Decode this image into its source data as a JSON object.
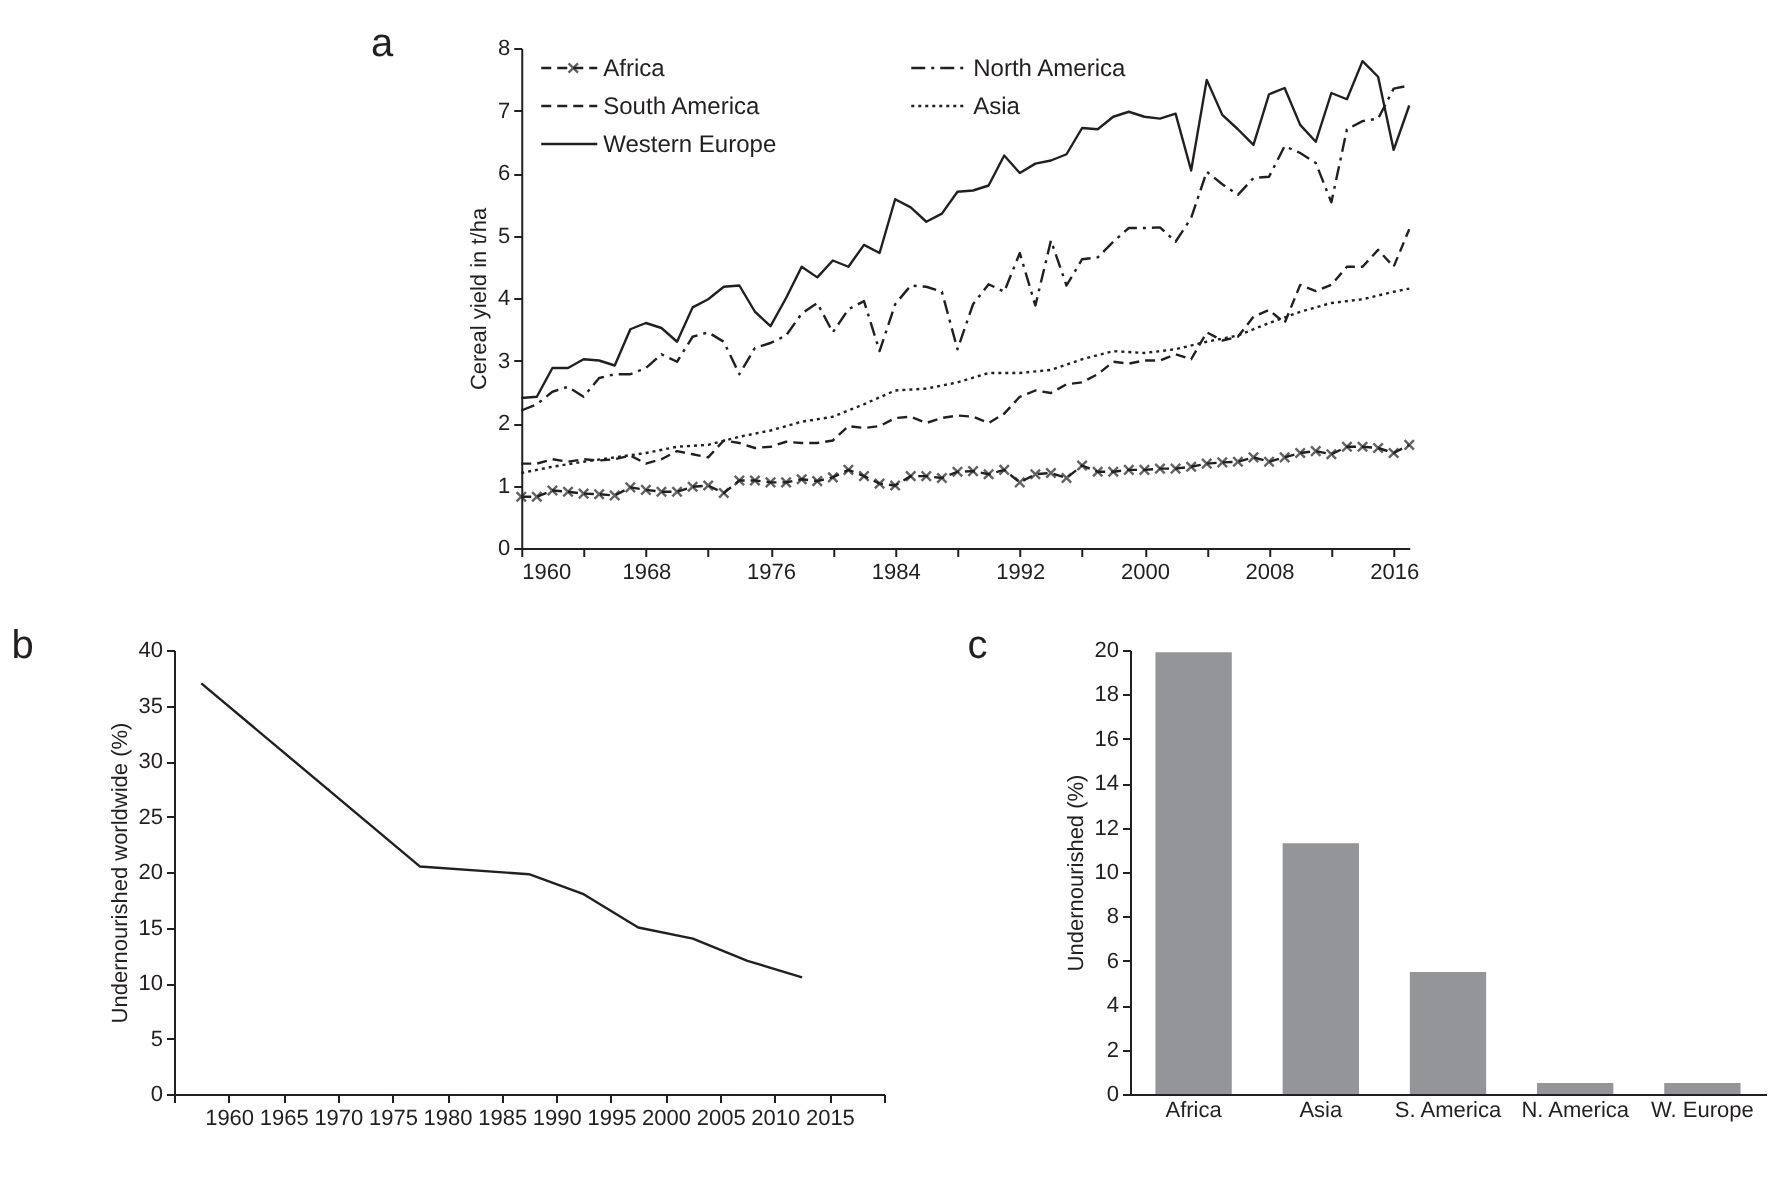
{
  "chart_data": [
    {
      "type": "line",
      "title": "a",
      "ylabel": "Cereal yield in t/ha",
      "legend": "top left",
      "x": [
        1960,
        1961,
        1962,
        1963,
        1964,
        1965,
        1966,
        1967,
        1968,
        1969,
        1970,
        1971,
        1972,
        1973,
        1974,
        1975,
        1976,
        1977,
        1978,
        1979,
        1980,
        1981,
        1982,
        1983,
        1984,
        1985,
        1986,
        1987,
        1988,
        1989,
        1990,
        1991,
        1992,
        1993,
        1994,
        1995,
        1996,
        1997,
        1998,
        1999,
        2000,
        2001,
        2002,
        2003,
        2004,
        2005,
        2006,
        2007,
        2008,
        2009,
        2010,
        2011,
        2012,
        2013,
        2014,
        2015,
        2016,
        2017
      ],
      "series": [
        {
          "name": "Africa",
          "color": "#231f20",
          "line_style": "dashed",
          "marker": "cross",
          "values": [
            0.82,
            0.82,
            0.92,
            0.9,
            0.87,
            0.86,
            0.84,
            0.97,
            0.93,
            0.9,
            0.9,
            0.98,
            1.0,
            0.88,
            1.08,
            1.08,
            1.05,
            1.05,
            1.1,
            1.07,
            1.13,
            1.25,
            1.15,
            1.03,
            1.0,
            1.15,
            1.15,
            1.12,
            1.22,
            1.23,
            1.18,
            1.25,
            1.05,
            1.18,
            1.2,
            1.12,
            1.32,
            1.22,
            1.22,
            1.25,
            1.25,
            1.27,
            1.27,
            1.3,
            1.35,
            1.37,
            1.38,
            1.45,
            1.38,
            1.45,
            1.52,
            1.55,
            1.5,
            1.62,
            1.62,
            1.6,
            1.52,
            1.65
          ]
        },
        {
          "name": "North America",
          "color": "#231f20",
          "line_style": "dashdot",
          "values": [
            2.2,
            2.3,
            2.5,
            2.58,
            2.42,
            2.72,
            2.78,
            2.78,
            2.88,
            3.1,
            2.98,
            3.38,
            3.45,
            3.3,
            2.78,
            3.2,
            3.28,
            3.4,
            3.75,
            3.92,
            3.45,
            3.82,
            3.95,
            3.15,
            3.9,
            4.2,
            4.18,
            4.1,
            3.18,
            3.9,
            4.22,
            4.1,
            4.72,
            3.88,
            4.92,
            4.2,
            4.62,
            4.65,
            4.9,
            5.12,
            5.12,
            5.13,
            4.9,
            5.28,
            6.02,
            5.82,
            5.65,
            5.92,
            5.94,
            6.43,
            6.32,
            6.16,
            5.53,
            6.7,
            6.83,
            6.87,
            7.35,
            7.4
          ]
        },
        {
          "name": "South America",
          "color": "#231f20",
          "line_style": "dashed",
          "values": [
            1.35,
            1.35,
            1.42,
            1.38,
            1.42,
            1.4,
            1.42,
            1.48,
            1.35,
            1.42,
            1.55,
            1.5,
            1.45,
            1.72,
            1.68,
            1.6,
            1.62,
            1.7,
            1.68,
            1.68,
            1.72,
            1.95,
            1.92,
            1.95,
            2.08,
            2.1,
            2.0,
            2.08,
            2.12,
            2.1,
            2.0,
            2.15,
            2.42,
            2.52,
            2.48,
            2.62,
            2.65,
            2.78,
            2.98,
            2.95,
            3.0,
            3.0,
            3.1,
            3.02,
            3.45,
            3.32,
            3.38,
            3.7,
            3.81,
            3.6,
            4.21,
            4.11,
            4.21,
            4.5,
            4.5,
            4.77,
            4.5,
            5.1
          ]
        },
        {
          "name": "Asia",
          "color": "#231f20",
          "line_style": "dotted",
          "x": [
            1960,
            1962,
            1964,
            1966,
            1968,
            1970,
            1972,
            1974,
            1976,
            1978,
            1980,
            1982,
            1984,
            1986,
            1988,
            1990,
            1992,
            1994,
            1996,
            1998,
            2000,
            2002,
            2004,
            2006,
            2008,
            2010,
            2012,
            2014,
            2016,
            2017
          ],
          "values": [
            1.2,
            1.3,
            1.38,
            1.45,
            1.52,
            1.62,
            1.65,
            1.78,
            1.88,
            2.02,
            2.1,
            2.3,
            2.52,
            2.55,
            2.65,
            2.8,
            2.8,
            2.85,
            3.02,
            3.15,
            3.12,
            3.18,
            3.3,
            3.4,
            3.6,
            3.78,
            3.92,
            3.98,
            4.1,
            4.15
          ]
        },
        {
          "name": "Western Europe",
          "color": "#231f20",
          "line_style": "solid",
          "values": [
            2.4,
            2.42,
            2.88,
            2.88,
            3.02,
            3.0,
            2.92,
            3.5,
            3.6,
            3.52,
            3.3,
            3.85,
            3.98,
            4.18,
            4.2,
            3.78,
            3.55,
            4.0,
            4.5,
            4.33,
            4.6,
            4.5,
            4.85,
            4.72,
            5.58,
            5.45,
            5.22,
            5.35,
            5.7,
            5.72,
            5.8,
            6.28,
            6.0,
            6.15,
            6.2,
            6.3,
            6.72,
            6.7,
            6.9,
            6.98,
            6.9,
            6.87,
            6.95,
            6.04,
            7.49,
            6.93,
            6.7,
            6.45,
            7.26,
            7.36,
            6.77,
            6.5,
            7.28,
            7.18,
            7.79,
            7.54,
            6.37,
            7.08
          ]
        }
      ],
      "xlim": [
        1960,
        2017
      ],
      "xticks": [
        1960,
        {
          "value": 1964,
          "label": null
        },
        1968,
        {
          "value": 1972,
          "label": null
        },
        1976,
        {
          "value": 1980,
          "label": null
        },
        1984,
        {
          "value": 1988,
          "label": null
        },
        1992,
        {
          "value": 1996,
          "label": null
        },
        2000,
        {
          "value": 2004,
          "label": null
        },
        2008,
        {
          "value": 2012,
          "label": null
        },
        2016
      ],
      "ylim": [
        0,
        8
      ],
      "yticks": [
        0,
        1,
        2,
        3,
        4,
        5,
        6,
        7,
        8
      ]
    },
    {
      "type": "line",
      "title": "b",
      "ylabel": "Undernourished worldwide (%)",
      "x": [
        1957.5,
        1977.5,
        1987.5,
        1992.5,
        1997.5,
        2002.5,
        2007.5,
        2012.5
      ],
      "series": [
        {
          "color": "#231f20",
          "values": [
            37,
            20.5,
            19.8,
            18,
            15,
            14,
            12,
            10.5
          ]
        }
      ],
      "xlim": [
        1955,
        2020
      ],
      "xticks": [
        {
          "value": 1955,
          "label": null
        },
        1960,
        1965,
        1970,
        1975,
        1980,
        1985,
        1990,
        1995,
        2000,
        2005,
        2010,
        2015,
        {
          "value": 2020,
          "label": null
        }
      ],
      "ylim": [
        0,
        40
      ],
      "yticks": [
        0,
        5,
        10,
        15,
        20,
        25,
        30,
        35,
        40
      ]
    },
    {
      "type": "bar",
      "title": "c",
      "ylabel": "Undernourished (%)",
      "categories": [
        "Africa",
        "Asia",
        "S. America",
        "N. America",
        "W. Europe"
      ],
      "values": [
        19.9,
        11.3,
        5.5,
        0.5,
        0.5
      ],
      "color": "#939598",
      "ylim": [
        0,
        20
      ],
      "yticks": [
        0,
        2,
        4,
        6,
        8,
        10,
        12,
        14,
        16,
        18,
        20
      ]
    }
  ]
}
